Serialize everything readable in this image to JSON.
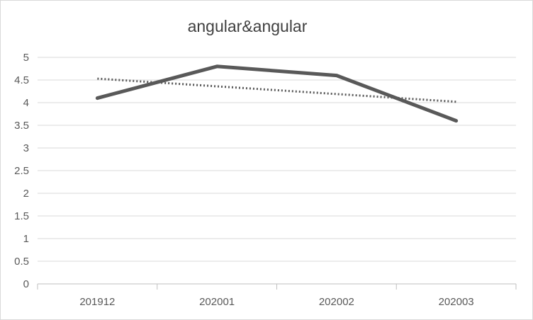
{
  "chart_data": {
    "type": "line",
    "title": "angular&angular",
    "xlabel": "",
    "ylabel": "",
    "categories": [
      "201912",
      "202001",
      "202002",
      "202003"
    ],
    "series": [
      {
        "values": [
          4.1,
          4.8,
          4.6,
          3.6
        ],
        "style": "solid"
      }
    ],
    "trendline": {
      "type": "linear",
      "style": "dotted",
      "values": [
        4.53,
        4.36,
        4.19,
        4.02
      ]
    },
    "ylim": [
      0,
      5
    ],
    "yticks": [
      "0",
      "0.5",
      "1",
      "1.5",
      "2",
      "2.5",
      "3",
      "3.5",
      "4",
      "4.5",
      "5"
    ],
    "grid": true,
    "legend": "none",
    "colors": {
      "series": "#595959",
      "trendline": "#595959",
      "grid": "#d9d9d9",
      "axis": "#bfbfbf",
      "text": "#595959"
    }
  }
}
